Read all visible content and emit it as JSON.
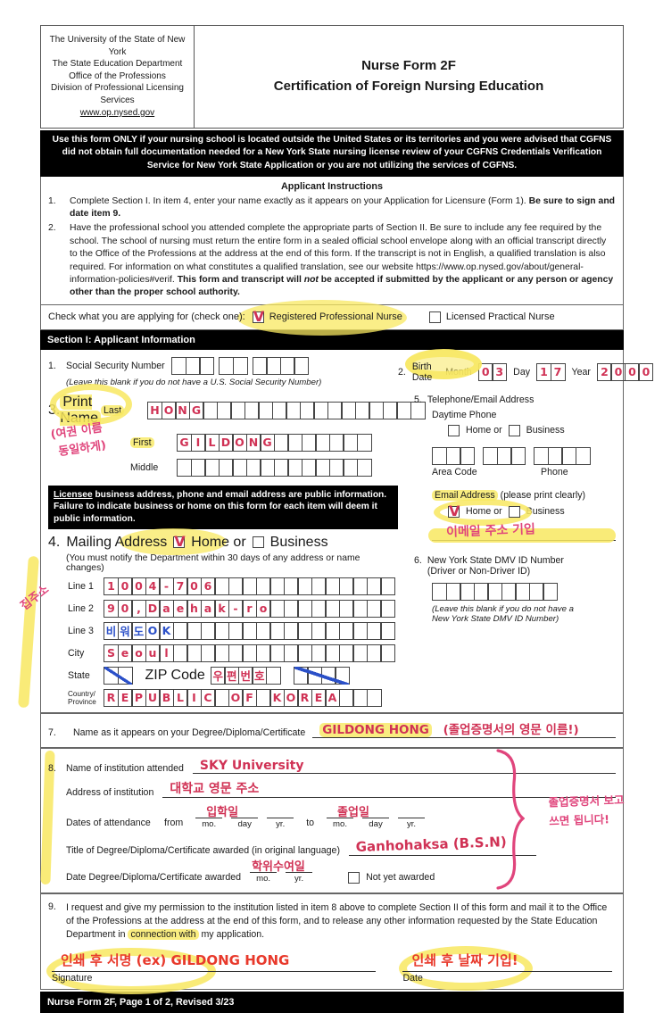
{
  "colors": {
    "crimson": "#d03255",
    "red": "#e8392b",
    "pink": "#e0457c",
    "blue": "#2b50c8",
    "highlight": "#f8e860"
  },
  "header": {
    "org_lines": [
      "The University of the State of New York",
      "The State Education Department",
      "Office of the Professions",
      "Division of Professional Licensing Services"
    ],
    "org_link": "www.op.nysed.gov",
    "title_line1": "Nurse Form 2F",
    "title_line2": "Certification of Foreign Nursing Education"
  },
  "banner": "Use this form ONLY if your nursing school is located outside the United States or its territories and you were advised that CGFNS did not obtain full documentation needed for a New York State nursing license review of your CGFNS Credentials Verification Service for New York State Application or you are not utilizing the services of CGFNS.",
  "instructions": {
    "title": "Applicant Instructions",
    "item1_num": "1.",
    "item1_text": "Complete Section I. In item 4, enter your name exactly as it appears on your Application for Licensure (Form 1). ",
    "item1_bold": "Be sure to sign and date item 9.",
    "item2_num": "2.",
    "item2_text": "Have the professional school you attended complete the appropriate parts of Section II. Be sure to include any fee required by the school. The school of nursing must return the entire form in a sealed official school envelope along with an official transcript directly to the Office of the Professions at the address at the end of this form. If the transcript is not in English, a qualified translation is also required. For information on what constitutes a qualified translation, see our website https://www.op.nysed.gov/about/general-information-policies#verif. ",
    "item2_bold_pre": "This form and transcript will ",
    "item2_bold_italic": "not",
    "item2_bold_post": " be accepted if submitted by the applicant or any person or agency other than the proper school authority."
  },
  "apply_row": {
    "label": "Check what you are applying for (check one):",
    "check_glyph": "V",
    "option1": "Registered Professional Nurse",
    "option2": "Licensed Practical Nurse"
  },
  "section1_bar": "Section I: Applicant Information",
  "item1": {
    "num": "1.",
    "label": "Social Security Number",
    "note": "(Leave this blank if you do not have a U.S. Social Security Number)",
    "ssn_a": {
      "n": 3,
      "v": ""
    },
    "ssn_b": {
      "n": 2,
      "v": ""
    },
    "ssn_c": {
      "n": 4,
      "v": ""
    }
  },
  "item2": {
    "num": "2.",
    "label": "Birth Date",
    "month_label": "Month",
    "day_label": "Day",
    "year_label": "Year",
    "month": {
      "n": 2,
      "v": "03",
      "ink": "crimson"
    },
    "day": {
      "n": 2,
      "v": "17",
      "ink": "crimson"
    },
    "year": {
      "n": 4,
      "v": "2000",
      "ink": "crimson"
    }
  },
  "item3": {
    "num": "3.",
    "label": "Print Name",
    "last_label": "Last",
    "first_label": "First",
    "middle_label": "Middle",
    "last": {
      "n": 20,
      "v": "HONG",
      "ink": "crimson"
    },
    "first": {
      "n": 14,
      "v": "GILDONG",
      "ink": "crimson"
    },
    "middle": {
      "n": 14,
      "v": ""
    },
    "korean_note_line1": "(여권 이름",
    "korean_note_line2": "동일하게)"
  },
  "licensee_notice": {
    "underlined": "Licensee",
    "rest": " business address, phone and email address are public information. Failure to indicate business or home on this form for each item will deem it public information."
  },
  "item4": {
    "num": "4.",
    "label": "Mailing Address",
    "check_glyph": "V",
    "home": "Home or",
    "business": "Business",
    "note": "(You must notify the Department within 30 days of any address or name changes)",
    "line1_label": "Line 1",
    "line2_label": "Line 2",
    "line3_label": "Line 3",
    "city_label": "City",
    "state_label": "State",
    "zip_label": "ZIP Code",
    "country_label_1": "Country/",
    "country_label_2": "Province",
    "line1": {
      "n": 21,
      "v": "1004-706",
      "ink": "crimson"
    },
    "line2": {
      "n": 21,
      "v": "90,Daehak-ro",
      "ink": "crimson"
    },
    "line3": {
      "n": 21,
      "v": "비워도OK",
      "ink": "blue"
    },
    "city": {
      "n": 21,
      "v": "Seoul",
      "ink": "crimson"
    },
    "state": {
      "n": 2,
      "v": ""
    },
    "zip": {
      "n": 5,
      "v": "우편번호",
      "ink": "crimson"
    },
    "zip_extra": {
      "n": 4,
      "v": ""
    },
    "country": {
      "n": 20,
      "v": "REPUBLIC OF KOREA",
      "ink": "crimson"
    },
    "side_note_kr": "집주소"
  },
  "item5": {
    "num": "5.",
    "label": "Telephone/Email Address",
    "daytime": "Daytime Phone",
    "home": "Home or",
    "business": "Business",
    "area": {
      "n": 3,
      "v": ""
    },
    "ph_a": {
      "n": 3,
      "v": ""
    },
    "ph_b": {
      "n": 4,
      "v": ""
    },
    "area_label": "Area Code",
    "phone_label": "Phone",
    "email_hl": "Email Address",
    "email_rest": " (please print clearly)",
    "check_glyph": "V",
    "email_home": "Home or",
    "email_business": "Business",
    "email_note_kr": "이메일 주소 기입"
  },
  "item6": {
    "num": "6.",
    "label": "New York State DMV ID Number",
    "label2": "(Driver or Non-Driver ID)",
    "dmv": {
      "n": 9,
      "v": ""
    },
    "note_1": "(Leave this blank if you do not have a",
    "note_2": "New York State DMV ID Number)"
  },
  "item7": {
    "num": "7.",
    "label": "Name as it appears on your Degree/Diploma/Certificate",
    "value": "GILDONG HONG",
    "value_kr": "(졸업증명서의 영문 이름!)"
  },
  "item8": {
    "num": "8.",
    "inst_label": "Name of institution attended",
    "inst_value": "SKY University",
    "addr_label": "Address of institution",
    "addr_value": "대학교 영문 주소",
    "dates_label": "Dates of attendance",
    "from": "from",
    "to": "to",
    "from_value": "입학일",
    "to_value": "졸업일",
    "mo": "mo.",
    "day": "day",
    "yr": "yr.",
    "title_label": "Title of Degree/Diploma/Certificate awarded (in original language)",
    "title_value": "Ganhohaksa (B.S.N)",
    "date_awarded_label": "Date Degree/Diploma/Certificate awarded",
    "date_awarded_value": "학위수여일",
    "not_yet": "Not yet awarded",
    "brace_note_line1": "졸업증명서 보고",
    "brace_note_line2": "쓰면 됩니다!"
  },
  "item9": {
    "num": "9.",
    "text_pre": "I request and give my permission to the institution listed in item 8 above to complete Section II of this form and mail it to the Office of the Professions at the address at the end of this form, and to release any other information requested by the State Education Department in ",
    "text_hl": "connection with",
    "text_post": " my application.",
    "signature_note": "인쇄 후 서명 (ex) GILDONG HONG",
    "signature_label": "Signature",
    "date_note": "인쇄 후 날짜 기입!",
    "date_label": "Date"
  },
  "footer": "Nurse Form 2F, Page 1 of 2, Revised 3/23"
}
